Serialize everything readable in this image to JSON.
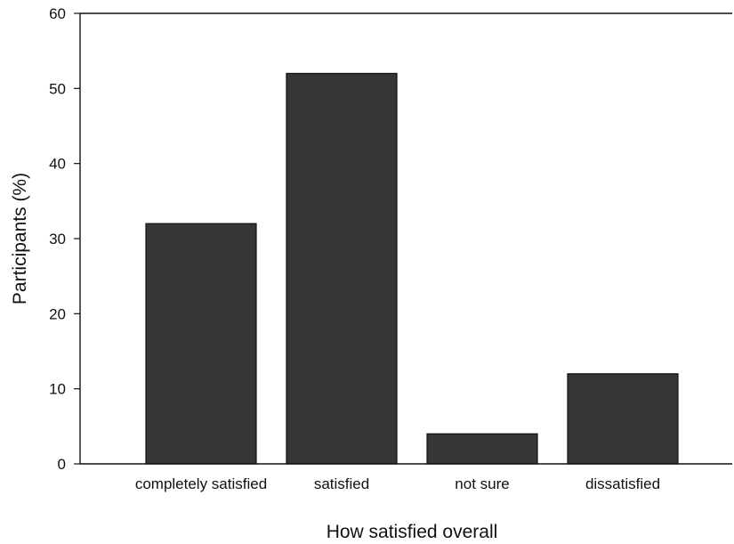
{
  "chart_data": {
    "type": "bar",
    "title": "",
    "xlabel": "How satisfied overall",
    "ylabel": "Participants (%)",
    "categories": [
      "completely satisfied",
      "satisfied",
      "not sure",
      "dissatisfied"
    ],
    "values": [
      32,
      52,
      4,
      12
    ],
    "ylim": [
      0,
      60
    ],
    "yticks": [
      0,
      10,
      20,
      30,
      40,
      50,
      60
    ],
    "grid": false,
    "bar_color": "#363636"
  }
}
